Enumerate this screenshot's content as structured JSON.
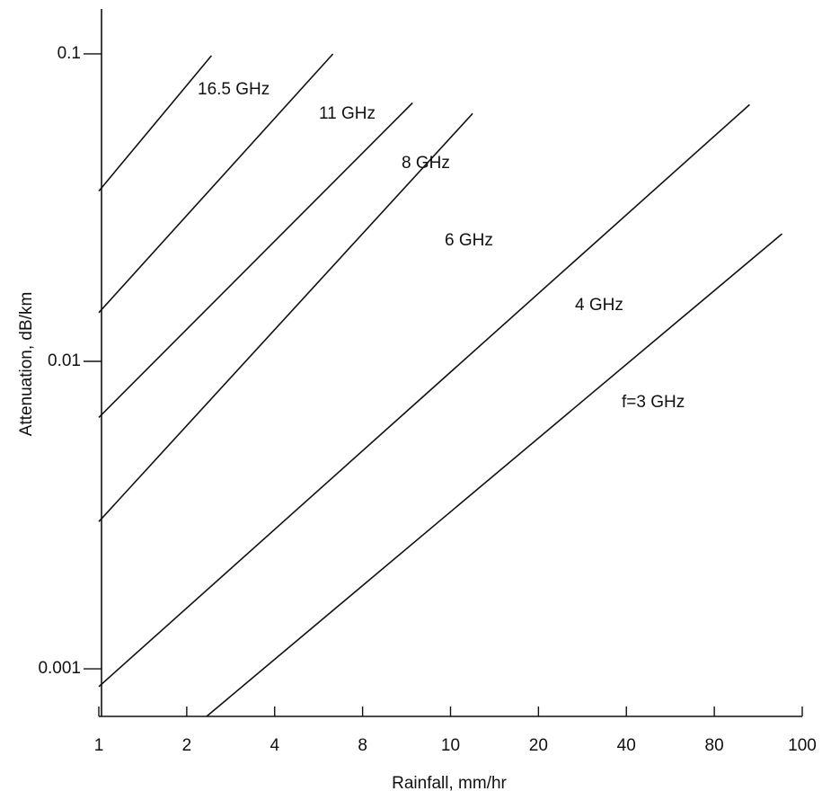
{
  "chart_data": {
    "type": "line",
    "x_label": "Rainfall, mm/hr",
    "y_label": "Attenuation, dB/km",
    "xlim": [
      1,
      100
    ],
    "xticks": [
      1,
      2,
      4,
      8,
      10,
      20,
      40,
      80,
      100
    ],
    "ylim": [
      0.0007,
      0.14
    ],
    "yticks": [
      0.001,
      0.01,
      0.1
    ],
    "y_scale": "log",
    "grid": false,
    "series": [
      {
        "name": "16.5 GHz",
        "color": "#111111",
        "x": [
          1,
          2.43
        ],
        "values": [
          0.0358,
          0.0987
        ]
      },
      {
        "name": "11 GHz",
        "color": "#111111",
        "x": [
          1,
          6.33
        ],
        "values": [
          0.0144,
          0.1
        ]
      },
      {
        "name": "8 GHz",
        "color": "#111111",
        "x": [
          1,
          9.08
        ],
        "values": [
          0.00657,
          0.0693
        ]
      },
      {
        "name": "6 GHz",
        "color": "#111111",
        "x": [
          1,
          11.9
        ],
        "values": [
          0.00301,
          0.064
        ]
      },
      {
        "name": "4 GHz",
        "color": "#111111",
        "x": [
          1,
          87.5
        ],
        "values": [
          0.000875,
          0.0684
        ]
      },
      {
        "name": "f=3 GHz",
        "color": "#111111",
        "x": [
          2.34,
          95
        ],
        "values": [
          0.0007,
          0.026
        ]
      }
    ]
  }
}
